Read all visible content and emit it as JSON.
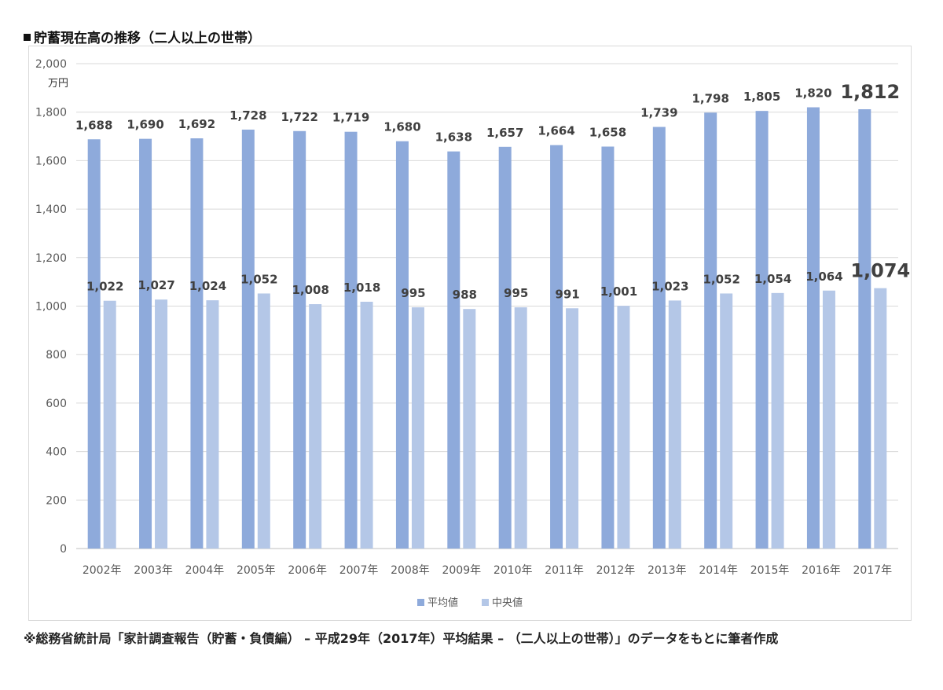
{
  "title": "貯蓄現在高の推移（二人以上の世帯）",
  "source_note": "※総務省統計局「家計調査報告（貯蓄・負債編） – 平成29年（2017年）平均結果 – （二人以上の世帯）」のデータをもとに筆者作成",
  "colors": {
    "series_mean": "#8eaadb",
    "series_median": "#b4c7e7",
    "grid": "#d9d9d9"
  },
  "chart_data": {
    "type": "bar",
    "title": "",
    "ylabel": "万円",
    "xlabel": "",
    "ylim": [
      0,
      2000
    ],
    "yticks": [
      0,
      200,
      400,
      600,
      800,
      1000,
      1200,
      1400,
      1600,
      1800,
      2000
    ],
    "ytick_labels": [
      "0",
      "200",
      "400",
      "600",
      "800",
      "1,000",
      "1,200",
      "1,400",
      "1,600",
      "1,800",
      "2,000"
    ],
    "grid": true,
    "legend_position": "bottom",
    "categories": [
      "2002年",
      "2003年",
      "2004年",
      "2005年",
      "2006年",
      "2007年",
      "2008年",
      "2009年",
      "2010年",
      "2011年",
      "2012年",
      "2013年",
      "2014年",
      "2015年",
      "2016年",
      "2017年"
    ],
    "series": [
      {
        "name": "平均値",
        "values": [
          1688,
          1690,
          1692,
          1728,
          1722,
          1719,
          1680,
          1638,
          1657,
          1664,
          1658,
          1739,
          1798,
          1805,
          1820,
          1812
        ],
        "labels": [
          "1,688",
          "1,690",
          "1,692",
          "1,728",
          "1,722",
          "1,719",
          "1,680",
          "1,638",
          "1,657",
          "1,664",
          "1,658",
          "1,739",
          "1,798",
          "1,805",
          "1,820",
          "1,812"
        ]
      },
      {
        "name": "中央値",
        "values": [
          1022,
          1027,
          1024,
          1052,
          1008,
          1018,
          995,
          988,
          995,
          991,
          1001,
          1023,
          1052,
          1054,
          1064,
          1074
        ],
        "labels": [
          "1,022",
          "1,027",
          "1,024",
          "1,052",
          "1,008",
          "1,018",
          "995",
          "988",
          "995",
          "991",
          "1,001",
          "1,023",
          "1,052",
          "1,054",
          "1,064",
          "1,074"
        ]
      }
    ],
    "highlight_category": "2017年"
  }
}
